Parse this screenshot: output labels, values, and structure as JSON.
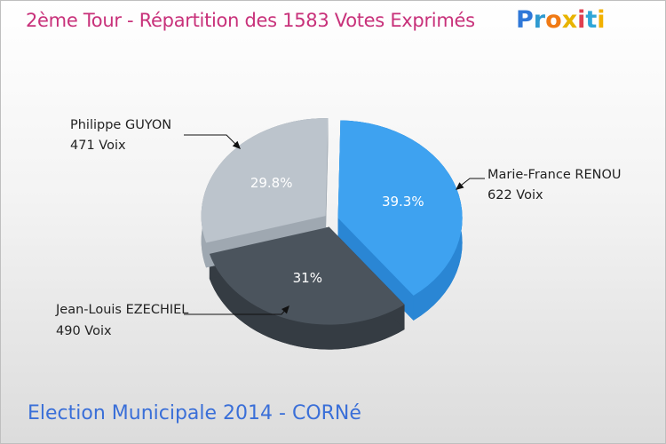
{
  "title": "2ème Tour - Répartition des 1583 Votes Exprimés",
  "subtitle": "Election Municipale 2014 - CORNé",
  "logo": {
    "text": "Proxiti",
    "letters": [
      {
        "char": "P",
        "color": "#2f78d8"
      },
      {
        "char": "r",
        "color": "#2f9ad0"
      },
      {
        "char": "o",
        "color": "#f07a14"
      },
      {
        "char": "x",
        "color": "#e8b400"
      },
      {
        "char": "i",
        "color": "#e04050"
      },
      {
        "char": "t",
        "color": "#2fa6d8"
      },
      {
        "char": "i",
        "color": "#f2b100"
      }
    ]
  },
  "chart_data": {
    "type": "pie",
    "title": "2ème Tour - Répartition des 1583 Votes Exprimés",
    "total_votes": 1583,
    "slices": [
      {
        "name": "Marie-France RENOU",
        "votes_label": "622 Voix",
        "votes": 622,
        "percent": 39.3,
        "pct_label": "39.3%",
        "color": "#3ea2f0",
        "side_color": "#2a86d4",
        "text_color": "#ffffff"
      },
      {
        "name": "Jean-Louis EZECHIEL",
        "votes_label": "490 Voix",
        "votes": 490,
        "percent": 31.0,
        "pct_label": "31%",
        "color": "#4b545d",
        "side_color": "#353c43",
        "text_color": "#ffffff"
      },
      {
        "name": "Philippe GUYON",
        "votes_label": "471 Voix",
        "votes": 471,
        "percent": 29.8,
        "pct_label": "29.8%",
        "color": "#bcc4cc",
        "side_color": "#9fa8b1",
        "text_color": "#ffffff"
      }
    ]
  }
}
